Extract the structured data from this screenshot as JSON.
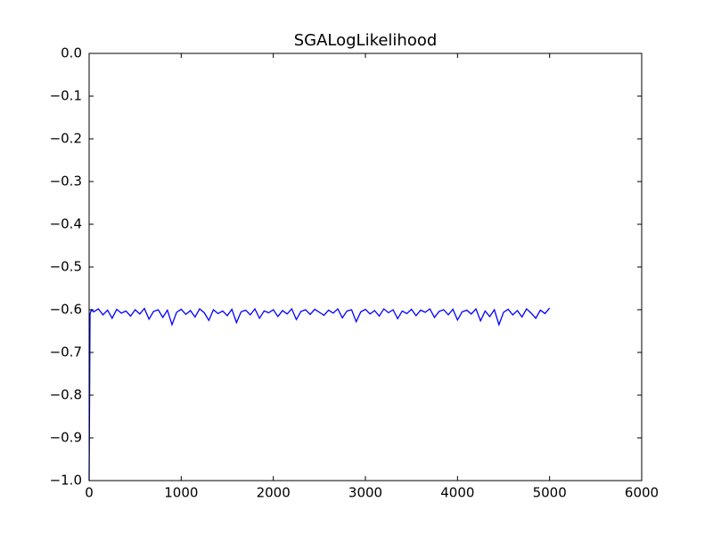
{
  "chart_data": {
    "type": "line",
    "title": "SGALogLikelihood",
    "x": [
      0,
      10,
      25,
      50,
      100,
      150,
      200,
      250,
      300,
      350,
      400,
      450,
      500,
      550,
      600,
      650,
      700,
      750,
      800,
      850,
      900,
      950,
      1000,
      1050,
      1100,
      1150,
      1200,
      1250,
      1300,
      1350,
      1400,
      1450,
      1500,
      1550,
      1600,
      1650,
      1700,
      1750,
      1800,
      1850,
      1900,
      1950,
      2000,
      2050,
      2100,
      2150,
      2200,
      2250,
      2300,
      2350,
      2400,
      2450,
      2500,
      2550,
      2600,
      2650,
      2700,
      2750,
      2800,
      2850,
      2900,
      2950,
      3000,
      3050,
      3100,
      3150,
      3200,
      3250,
      3300,
      3350,
      3400,
      3450,
      3500,
      3550,
      3600,
      3650,
      3700,
      3750,
      3800,
      3850,
      3900,
      3950,
      4000,
      4050,
      4100,
      4150,
      4200,
      4250,
      4300,
      4350,
      4400,
      4450,
      4500,
      4550,
      4600,
      4650,
      4700,
      4750,
      4800,
      4850,
      4900,
      4950,
      5000
    ],
    "series": [
      {
        "color": "#0000ff",
        "values": [
          -1.0,
          -0.61,
          -0.6,
          -0.605,
          -0.598,
          -0.612,
          -0.601,
          -0.62,
          -0.599,
          -0.608,
          -0.603,
          -0.615,
          -0.6,
          -0.61,
          -0.597,
          -0.622,
          -0.604,
          -0.6,
          -0.618,
          -0.601,
          -0.635,
          -0.606,
          -0.599,
          -0.611,
          -0.602,
          -0.617,
          -0.598,
          -0.607,
          -0.625,
          -0.6,
          -0.609,
          -0.603,
          -0.614,
          -0.599,
          -0.63,
          -0.605,
          -0.601,
          -0.612,
          -0.598,
          -0.62,
          -0.603,
          -0.607,
          -0.6,
          -0.616,
          -0.602,
          -0.61,
          -0.598,
          -0.623,
          -0.604,
          -0.6,
          -0.611,
          -0.599,
          -0.606,
          -0.613,
          -0.601,
          -0.608,
          -0.598,
          -0.619,
          -0.603,
          -0.6,
          -0.628,
          -0.605,
          -0.599,
          -0.61,
          -0.602,
          -0.615,
          -0.598,
          -0.607,
          -0.6,
          -0.621,
          -0.603,
          -0.609,
          -0.599,
          -0.614,
          -0.601,
          -0.606,
          -0.598,
          -0.618,
          -0.604,
          -0.6,
          -0.612,
          -0.599,
          -0.624,
          -0.605,
          -0.601,
          -0.61,
          -0.598,
          -0.626,
          -0.603,
          -0.616,
          -0.6,
          -0.635,
          -0.606,
          -0.599,
          -0.612,
          -0.602,
          -0.617,
          -0.598,
          -0.608,
          -0.62,
          -0.601,
          -0.609,
          -0.596
        ]
      }
    ],
    "xlim": [
      0,
      6000
    ],
    "xticks": [
      0,
      1000,
      2000,
      3000,
      4000,
      5000,
      6000
    ],
    "ylim": [
      -1.0,
      0.0
    ],
    "yticks": [
      {
        "value": 0.0,
        "label": "0.0"
      },
      {
        "value": -0.1,
        "label": "−0.1"
      },
      {
        "value": -0.2,
        "label": "−0.2"
      },
      {
        "value": -0.3,
        "label": "−0.3"
      },
      {
        "value": -0.4,
        "label": "−0.4"
      },
      {
        "value": -0.5,
        "label": "−0.5"
      },
      {
        "value": -0.6,
        "label": "−0.6"
      },
      {
        "value": -0.7,
        "label": "−0.7"
      },
      {
        "value": -0.8,
        "label": "−0.8"
      },
      {
        "value": -0.9,
        "label": "−0.9"
      },
      {
        "value": -1.0,
        "label": "−1.0"
      }
    ],
    "grid": false
  }
}
